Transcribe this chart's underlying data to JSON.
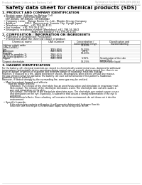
{
  "header_left": "Product Name: Lithium Ion Battery Cell",
  "header_right_line1": "Substance Control: SDS-009-00010",
  "header_right_line2": "Established / Revision: Dec.7.2010",
  "title": "Safety data sheet for chemical products (SDS)",
  "section1_title": "1. PRODUCT AND COMPANY IDENTIFICATION",
  "section1_lines": [
    "  • Product name: Lithium Ion Battery Cell",
    "  • Product code: Cylindrical type cell",
    "    (IHF-B5500, IHF-B8500, IHF-B8500A)",
    "  • Company name:   Baisgo Enviro Co., Ltd., Rhodes Energy Company",
    "  • Address:           220-1  Kannonsauri, Sumoto City, Hyogo, Japan",
    "  • Telephone number:  +81-799-26-4111",
    "  • Fax number:  +81-799-26-4121",
    "  • Emergency telephone number (Weekdays) +81-799-26-3842",
    "                                    (Night and holiday) +81-799-26-4101"
  ],
  "section2_title": "2. COMPOSITION / INFORMATION ON INGREDIENTS",
  "section2_intro": "  • Substance or preparation: Preparation",
  "section2_sub": "  • Information about the chemical nature of product:",
  "table_rows": [
    [
      "Chemical name",
      "CAS number",
      "Concentration /\nConcentration range",
      "Classification and\nhazard labeling"
    ],
    [
      "Lithium cobalt oxide",
      "",
      "30-60%",
      ""
    ],
    [
      "(LiMn-Co/NiO₂)",
      "",
      "",
      ""
    ],
    [
      "Iron",
      "7439-89-6",
      "15-25%",
      ""
    ],
    [
      "Aluminum",
      "7429-90-5",
      "2-8%",
      ""
    ],
    [
      "Graphite",
      "",
      "10-20%",
      ""
    ],
    [
      "(listed as graphite-1)",
      "7760-42-5",
      "",
      ""
    ],
    [
      "(As listed graphite-1)",
      "7740-44-0",
      "",
      ""
    ],
    [
      "Copper",
      "7440-50-8",
      "5-15%",
      "Sensitization of the skin\ngroup No.2"
    ],
    [
      "Organic electrolyte",
      "",
      "10-25%",
      "Inflammable liquid"
    ]
  ],
  "section3_title": "3. HAZARD IDENTIFICATION",
  "section3_para1": [
    "For the battery cell, chemical materials are stored in a hermetically sealed metal case, designed to withstand",
    "temperatures and portable-device operations during normal use, as a result, during normal use, there is no",
    "physical danger of ignition or explosion and therefore danger of hazardous materials leakage.",
    "However, if exposed to a fire, added mechanical shocks, decomposed, when electro without any misuse,",
    "the gas release cannot be operated. The battery cell case will be breached if fire-patterns, hazardous",
    "materials may be released.",
    "Moreover, if heated strongly by the surrounding fire, some gas may be emitted."
  ],
  "section3_bullet1_title": "• Most important hazard and effects:",
  "section3_bullet1_sub": "    Human health effects:",
  "section3_bullet1_lines": [
    "       Inhalation: The release of the electrolyte has an anesthesia action and stimulates in respiratory tract.",
    "       Skin contact: The release of the electrolyte stimulates a skin. The electrolyte skin contact causes a",
    "       sore and stimulation on the skin.",
    "       Eye contact: The release of the electrolyte stimulates eyes. The electrolyte eye contact causes a sore",
    "       and stimulation on the eye. Especially, a substance that causes a strong inflammation of the eye is",
    "       contained.",
    "       Environmental effects: Since a battery cell remains in the environment, do not throw out it into the",
    "       environment."
  ],
  "section3_bullet2_title": "• Specific hazards:",
  "section3_bullet2_lines": [
    "       If the electrolyte contacts with water, it will generate detrimental hydrogen fluoride.",
    "       Since the seal electrolyte is inflammable liquid, do not bring close to fire."
  ],
  "bg_color": "#ffffff"
}
